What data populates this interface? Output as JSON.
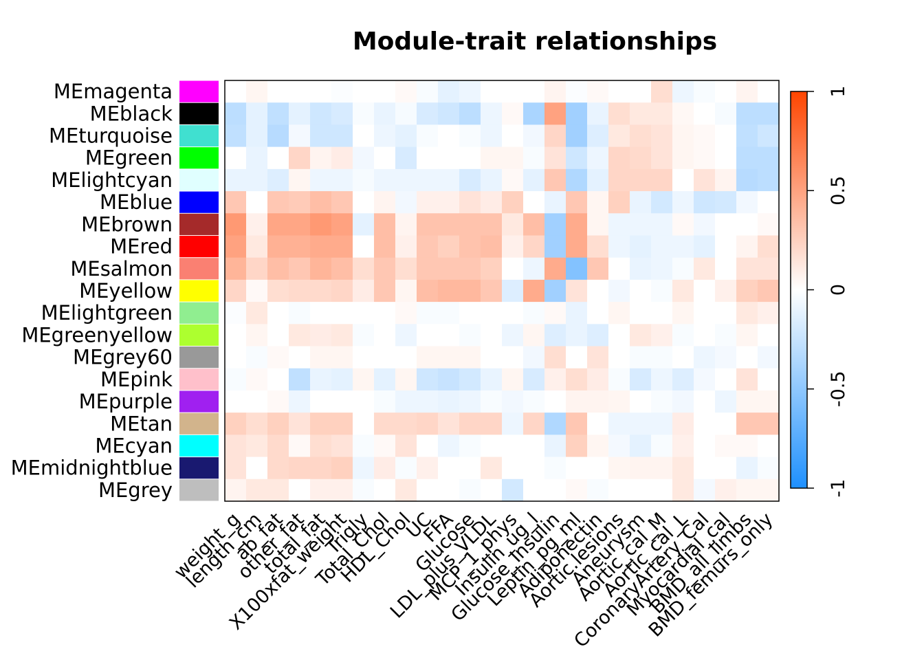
{
  "chart_data": {
    "type": "heatmap",
    "title": "Module-trait relationships",
    "rows": [
      {
        "label": "MEmagenta",
        "color": "#FF00FF"
      },
      {
        "label": "MEblack",
        "color": "#000000"
      },
      {
        "label": "MEturquoise",
        "color": "#40E0D0"
      },
      {
        "label": "MEgreen",
        "color": "#00FF00"
      },
      {
        "label": "MElightcyan",
        "color": "#E0FFFF"
      },
      {
        "label": "MEblue",
        "color": "#0000FF"
      },
      {
        "label": "MEbrown",
        "color": "#A52A2A"
      },
      {
        "label": "MEred",
        "color": "#FF0000"
      },
      {
        "label": "MEsalmon",
        "color": "#FA8072"
      },
      {
        "label": "MEyellow",
        "color": "#FFFF00"
      },
      {
        "label": "MElightgreen",
        "color": "#90EE90"
      },
      {
        "label": "MEgreenyellow",
        "color": "#ADFF2F"
      },
      {
        "label": "MEgrey60",
        "color": "#999999"
      },
      {
        "label": "MEpink",
        "color": "#FFC0CB"
      },
      {
        "label": "MEpurple",
        "color": "#A020F0"
      },
      {
        "label": "MEtan",
        "color": "#D2B48C"
      },
      {
        "label": "MEcyan",
        "color": "#00FFFF"
      },
      {
        "label": "MEmidnightblue",
        "color": "#191970"
      },
      {
        "label": "MEgrey",
        "color": "#BEBEBE"
      }
    ],
    "columns": [
      "weight_g",
      "length_cm",
      "ab_fat",
      "other_fat",
      "total_fat",
      "X100xfat_weight",
      "Trigly",
      "Total_Chol",
      "HDL_Chol",
      "UC",
      "FFA",
      "Glucose",
      "LDL_plus_VLDL",
      "MCP_1_phys",
      "Insulin_ug_l",
      "Glucose_Insulin",
      "Leptin_pg_ml",
      "Adiponectin",
      "Aortic.lesions",
      "Aneurysm",
      "Aortic_cal_M",
      "Aortic_cal_L",
      "CoronaryArtery_Cal",
      "Myocardial_cal",
      "BMD_all_limbs",
      "BMD_femurs_only"
    ],
    "values": [
      [
        0,
        0.05,
        0,
        0,
        0,
        -0.02,
        0,
        0,
        0.03,
        -0.03,
        -0.12,
        -0.08,
        0,
        0,
        0,
        0.06,
        -0.02,
        0.03,
        0,
        0,
        0.18,
        -0.08,
        -0.03,
        0,
        0.06,
        0
      ],
      [
        -0.3,
        -0.12,
        -0.28,
        -0.12,
        -0.22,
        -0.18,
        -0.03,
        -0.1,
        -0.04,
        -0.18,
        -0.22,
        -0.3,
        -0.08,
        0.03,
        -0.38,
        0.5,
        -0.42,
        -0.1,
        0.18,
        0.12,
        0.12,
        0.04,
        0,
        -0.04,
        -0.3,
        -0.3
      ],
      [
        -0.28,
        -0.12,
        -0.32,
        -0.05,
        -0.22,
        -0.22,
        0,
        -0.08,
        -0.12,
        -0.03,
        0,
        -0.03,
        -0.08,
        0,
        -0.06,
        0.22,
        -0.42,
        -0.15,
        0.12,
        0.18,
        0.15,
        0.05,
        0.03,
        0,
        -0.28,
        -0.22
      ],
      [
        0,
        -0.1,
        0,
        0.22,
        0.06,
        0.1,
        -0.06,
        0,
        -0.18,
        0,
        0,
        0,
        0.05,
        0.05,
        -0.03,
        0.15,
        -0.22,
        -0.08,
        0.22,
        0.2,
        0.15,
        0.05,
        0.03,
        0,
        -0.3,
        -0.3
      ],
      [
        -0.1,
        -0.1,
        -0.15,
        0.05,
        -0.08,
        -0.08,
        -0.04,
        -0.08,
        -0.08,
        -0.08,
        -0.08,
        -0.18,
        -0.1,
        0.03,
        -0.12,
        0.3,
        -0.35,
        -0.12,
        0.22,
        0.22,
        0.22,
        0,
        0.15,
        0.06,
        -0.32,
        -0.3
      ],
      [
        0.3,
        0,
        0.3,
        0.28,
        0.35,
        0.3,
        0,
        0.06,
        -0.06,
        0.08,
        0.08,
        0.15,
        0.1,
        0.25,
        0,
        -0.1,
        0.3,
        0.05,
        0.25,
        -0.1,
        -0.2,
        -0.08,
        -0.22,
        -0.2,
        -0.06,
        0
      ],
      [
        0.55,
        0.08,
        0.48,
        0.48,
        0.55,
        0.5,
        -0.12,
        0.35,
        0.06,
        0.32,
        0.32,
        0.32,
        0.32,
        0.12,
        0.35,
        -0.42,
        0.45,
        0.05,
        -0.08,
        -0.08,
        -0.08,
        0.03,
        -0.06,
        0,
        0,
        0.03
      ],
      [
        0.5,
        0.12,
        0.42,
        0.42,
        0.45,
        0.45,
        0,
        0.35,
        0.08,
        0.3,
        0.25,
        0.32,
        0.35,
        0.08,
        0.22,
        -0.42,
        0.45,
        0.18,
        -0.08,
        -0.12,
        -0.08,
        -0.08,
        -0.12,
        0,
        0.06,
        0.18
      ],
      [
        0.4,
        0.22,
        0.35,
        0.3,
        0.4,
        0.35,
        0.18,
        0.3,
        0.18,
        0.3,
        0.3,
        0.3,
        0.25,
        0,
        -0.08,
        0.45,
        -0.55,
        0.3,
        0,
        -0.1,
        -0.08,
        -0.03,
        0.12,
        0,
        0.15,
        0.15
      ],
      [
        0.22,
        0.03,
        0.18,
        0.2,
        0.2,
        0.22,
        0.1,
        0.3,
        0.05,
        0.35,
        0.38,
        0.38,
        0.3,
        -0.15,
        0.45,
        -0.42,
        0.15,
        0,
        -0.06,
        0,
        -0.03,
        0.12,
        0,
        0.08,
        0.25,
        0.3
      ],
      [
        -0.02,
        0.12,
        0,
        -0.03,
        0,
        0,
        0,
        0,
        0.03,
        -0.03,
        -0.03,
        0,
        0,
        0,
        -0.03,
        0.03,
        -0.1,
        0,
        0.05,
        0,
        0,
        0.05,
        0,
        0,
        0.12,
        0.08
      ],
      [
        0,
        0.05,
        0,
        0.12,
        0.1,
        0.12,
        -0.03,
        0,
        -0.08,
        0,
        0,
        -0.03,
        0,
        -0.08,
        0.05,
        -0.15,
        -0.1,
        -0.15,
        0,
        0.12,
        0.08,
        -0.03,
        0,
        -0.03,
        0.05,
        0
      ],
      [
        0,
        -0.03,
        0.03,
        0,
        0.05,
        0.05,
        0,
        0,
        0,
        0.05,
        0.05,
        0.05,
        0,
        0,
        -0.06,
        0.18,
        0,
        0.15,
        0,
        -0.03,
        -0.03,
        0,
        -0.08,
        -0.05,
        0,
        -0.06
      ],
      [
        -0.03,
        0.03,
        0,
        -0.28,
        -0.1,
        -0.12,
        0.05,
        -0.12,
        0.05,
        -0.22,
        -0.25,
        -0.2,
        -0.1,
        0.05,
        -0.18,
        0.08,
        0.18,
        0.1,
        -0.03,
        -0.18,
        -0.08,
        -0.15,
        -0.05,
        0,
        0.15,
        0
      ],
      [
        0,
        0,
        0.03,
        -0.08,
        0,
        0,
        0,
        -0.03,
        -0.08,
        -0.08,
        -0.1,
        -0.08,
        -0.03,
        -0.06,
        -0.03,
        0,
        0.06,
        0.06,
        0.05,
        0,
        -0.03,
        -0.06,
        0,
        -0.08,
        0.05,
        0.05
      ],
      [
        0.25,
        0.18,
        0.25,
        0.15,
        0.25,
        0.25,
        0,
        0.2,
        0.2,
        0.22,
        0.15,
        0.22,
        0.22,
        -0.08,
        0.22,
        -0.35,
        0.3,
        0,
        -0.08,
        -0.08,
        -0.08,
        0.1,
        0,
        0,
        0.3,
        0.3
      ],
      [
        0.15,
        0.12,
        0.2,
        0.03,
        0.18,
        0.15,
        -0.03,
        0.03,
        0.15,
        0,
        -0.08,
        -0.03,
        0,
        0,
        0,
        -0.1,
        0.25,
        0.05,
        -0.05,
        -0.12,
        -0.03,
        0.08,
        0,
        0.03,
        0.03,
        0
      ],
      [
        0.15,
        0,
        0.2,
        0.22,
        0.22,
        0.25,
        -0.08,
        0.1,
        -0.03,
        0.08,
        0,
        0,
        0.12,
        0,
        0,
        -0.03,
        0,
        0,
        0.05,
        0.06,
        0.06,
        0.12,
        0,
        0,
        -0.1,
        -0.03
      ],
      [
        0.06,
        0.12,
        0.12,
        0,
        0.08,
        0.08,
        -0.03,
        0,
        0.12,
        0,
        0,
        -0.03,
        0,
        -0.2,
        0,
        0,
        0.03,
        -0.03,
        0,
        0,
        0,
        0.12,
        -0.05,
        0.08,
        0.05,
        0.05
      ]
    ],
    "colorbar": {
      "min": -1,
      "max": 1,
      "ticks": [
        "1",
        "0.5",
        "0",
        "-0.5",
        "-1"
      ],
      "low_color": "#1E90FF",
      "mid_color": "#FFFFFF",
      "high_color": "#FF4500"
    }
  }
}
